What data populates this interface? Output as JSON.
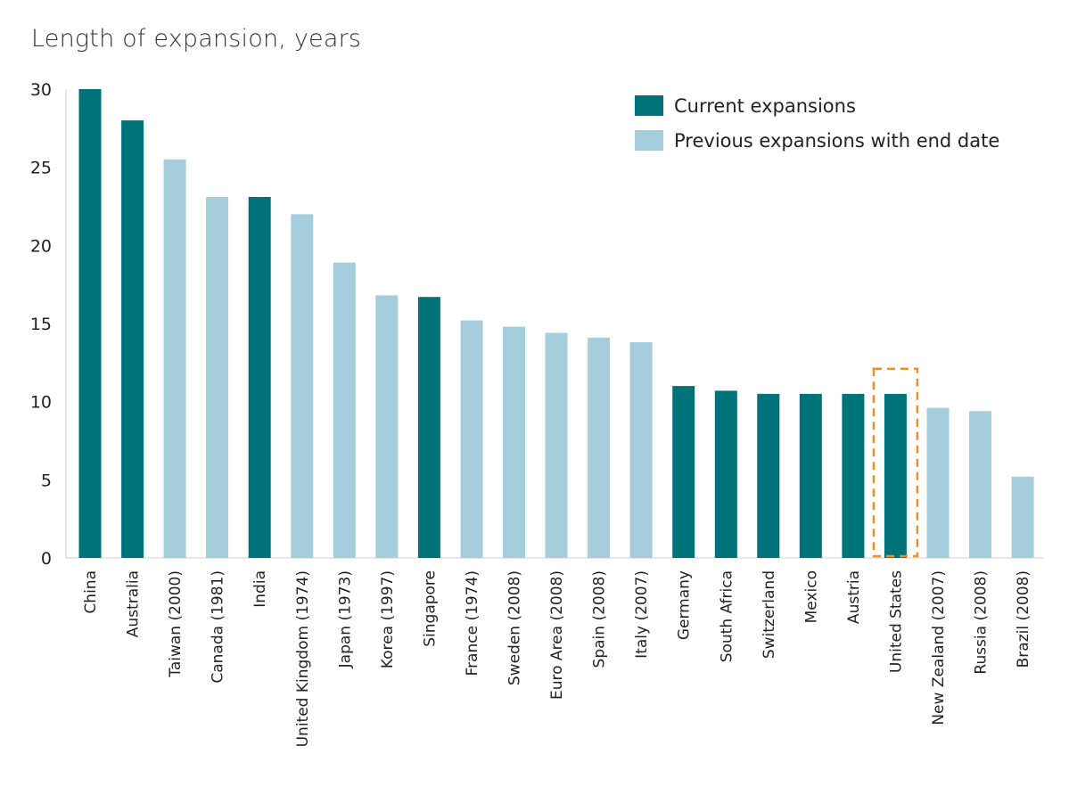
{
  "chart_data": {
    "type": "bar",
    "title": "Length of expansion, years",
    "xlabel": "",
    "ylabel": "",
    "ylim": [
      0,
      30
    ],
    "yticks": [
      0,
      5,
      10,
      15,
      20,
      25,
      30
    ],
    "grid": false,
    "legend_position": "top-right",
    "colors": {
      "current": "#00737a",
      "previous": "#a6cddb",
      "highlight": "#e8922a"
    },
    "legend": [
      {
        "key": "current",
        "label": "Current expansions"
      },
      {
        "key": "previous",
        "label": "Previous expansions with end date"
      }
    ],
    "categories": [
      "China",
      "Australia",
      "Taiwan (2000)",
      "Canada (1981)",
      "India",
      "United Kingdom (1974)",
      "Japan (1973)",
      "Korea (1997)",
      "Singapore",
      "France (1974)",
      "Sweden (2008)",
      "Euro Area (2008)",
      "Spain (2008)",
      "Italy (2007)",
      "Germany",
      "South Africa",
      "Switzerland",
      "Mexico",
      "Austria",
      "United States",
      "New Zealand (2007)",
      "Russia (2008)",
      "Brazil (2008)"
    ],
    "values": [
      30.0,
      28.0,
      25.5,
      23.1,
      23.1,
      22.0,
      18.9,
      16.8,
      16.7,
      15.2,
      14.8,
      14.4,
      14.1,
      13.8,
      11.0,
      10.7,
      10.5,
      10.5,
      10.5,
      10.5,
      9.6,
      9.4,
      5.2
    ],
    "groups": [
      "current",
      "current",
      "previous",
      "previous",
      "current",
      "previous",
      "previous",
      "previous",
      "current",
      "previous",
      "previous",
      "previous",
      "previous",
      "previous",
      "current",
      "current",
      "current",
      "current",
      "current",
      "current",
      "previous",
      "previous",
      "previous"
    ],
    "highlighted_category": "United States"
  }
}
